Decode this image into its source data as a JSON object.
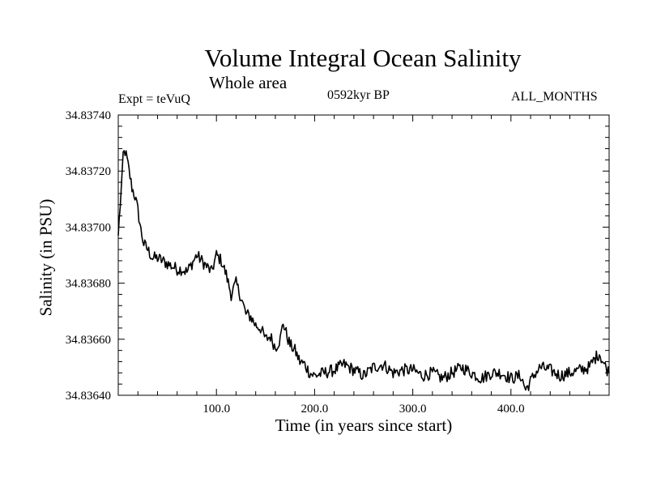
{
  "chart_data": {
    "type": "line",
    "title": "Volume Integral Ocean Salinity",
    "subtitle": "Whole area",
    "annotations": {
      "experiment": "Expt = teVuQ",
      "period": "0592kyr BP",
      "months": "ALL_MONTHS"
    },
    "xlabel": "Time (in years since start)",
    "ylabel": "Salinity (in PSU)",
    "xlim": [
      0,
      500
    ],
    "ylim": [
      34.8364,
      34.8374
    ],
    "x_ticks": [
      100,
      200,
      300,
      400
    ],
    "x_tick_labels": [
      "100.0",
      "200.0",
      "300.0",
      "400.0"
    ],
    "y_ticks": [
      34.8364,
      34.8366,
      34.8368,
      34.837,
      34.8372,
      34.8374
    ],
    "y_tick_labels": [
      "34.83640",
      "34.83660",
      "34.83680",
      "34.83700",
      "34.83720",
      "34.83740"
    ],
    "grid": false,
    "legend": "none",
    "line_color": "#000000",
    "series": [
      {
        "x": [
          0,
          2,
          4,
          5,
          7,
          9,
          11,
          14,
          17,
          20,
          23,
          26,
          30,
          35,
          40,
          45,
          50,
          55,
          60,
          65,
          70,
          75,
          80,
          85,
          90,
          95,
          100,
          105,
          110,
          115,
          120,
          125,
          130,
          135,
          140,
          145,
          150,
          155,
          160,
          165,
          168,
          172,
          175,
          180,
          185,
          190,
          195,
          200,
          210,
          220,
          230,
          240,
          250,
          260,
          270,
          280,
          290,
          300,
          310,
          320,
          330,
          340,
          350,
          360,
          370,
          380,
          390,
          400,
          410,
          415,
          420,
          425,
          430,
          440,
          450,
          460,
          470,
          480,
          485,
          490,
          495,
          500
        ],
        "y": [
          34.83697,
          34.83708,
          34.83718,
          34.83726,
          34.83727,
          34.83724,
          34.8372,
          34.83714,
          34.83711,
          34.83706,
          34.83699,
          34.83694,
          34.83692,
          34.83689,
          34.83689,
          34.83688,
          34.83687,
          34.83686,
          34.83685,
          34.83685,
          34.83684,
          34.83687,
          34.8369,
          34.83688,
          34.83686,
          34.83684,
          34.8369,
          34.83688,
          34.83683,
          34.83676,
          34.8368,
          34.83675,
          34.83669,
          34.83668,
          34.83665,
          34.83664,
          34.8366,
          34.83661,
          34.83657,
          34.8366,
          34.83666,
          34.83661,
          34.83658,
          34.83656,
          34.83652,
          34.83651,
          34.83648,
          34.83647,
          34.83648,
          34.83649,
          34.83651,
          34.83649,
          34.83647,
          34.8365,
          34.83651,
          34.83648,
          34.83649,
          34.83649,
          34.83647,
          34.83648,
          34.83646,
          34.83648,
          34.8365,
          34.83648,
          34.83646,
          34.83648,
          34.83648,
          34.83646,
          34.83647,
          34.83642,
          34.83645,
          34.83648,
          34.8365,
          34.83649,
          34.83647,
          34.83648,
          34.83649,
          34.8365,
          34.83653,
          34.83655,
          34.83651,
          34.83648
        ]
      }
    ]
  }
}
